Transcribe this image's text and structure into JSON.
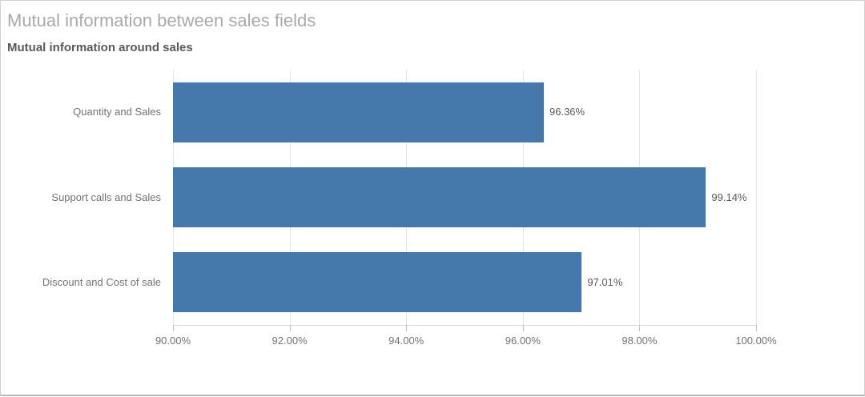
{
  "widget": {
    "title": "Mutual information between sales fields",
    "subtitle": "Mutual information around sales"
  },
  "colors": {
    "bar": "#4679ab",
    "gridline": "#e6e6e6",
    "axis_line": "#d9d9d9",
    "tick_mark": "#c2c2c2",
    "title": "#a9a9a9",
    "subtitle": "#595959",
    "category_label": "#737373",
    "axis_label": "#737373",
    "value_label": "#595959",
    "widget_border": "#d2d2d2"
  },
  "chart_data": {
    "type": "bar",
    "orientation": "horizontal",
    "title": "Mutual information around sales",
    "categories": [
      "Quantity and Sales",
      "Support calls and Sales",
      "Discount and Cost of sale"
    ],
    "values": [
      96.36,
      99.14,
      97.01
    ],
    "value_labels": [
      "96.36%",
      "99.14%",
      "97.01%"
    ],
    "xlabel": "",
    "ylabel": "",
    "xlim": [
      90,
      100
    ],
    "x_ticks": [
      90,
      92,
      94,
      96,
      98,
      100
    ],
    "x_tick_labels": [
      "90.00%",
      "92.00%",
      "94.00%",
      "96.00%",
      "98.00%",
      "100.00%"
    ],
    "grid": "vertical",
    "legend": "none"
  }
}
